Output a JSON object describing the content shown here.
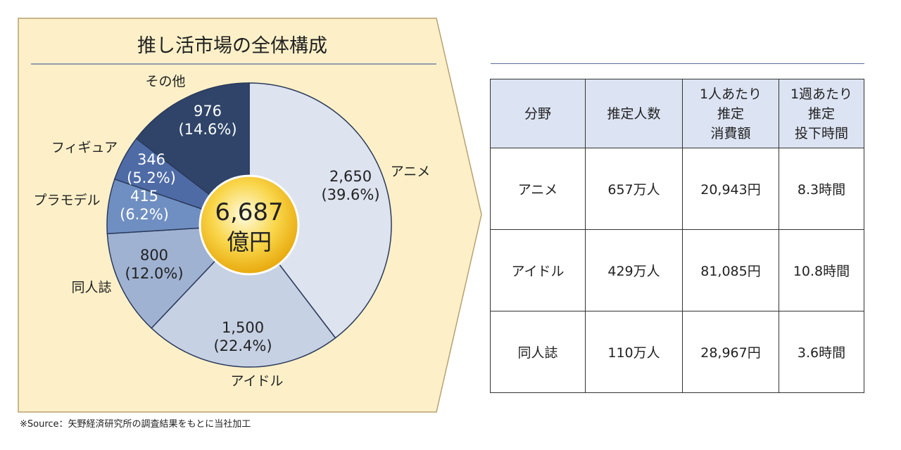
{
  "chart_data": {
    "type": "pie",
    "title": "推し活市場の全体構成",
    "center_label": {
      "value": "6,687",
      "unit": "億円"
    },
    "slices": [
      {
        "name": "アニメ",
        "value": 2650,
        "value_label": "2,650",
        "percent_label": "(39.6%)",
        "color": "#dde3ef"
      },
      {
        "name": "アイドル",
        "value": 1500,
        "value_label": "1,500",
        "percent_label": "(22.4%)",
        "color": "#c6d1e4"
      },
      {
        "name": "同人誌",
        "value": 800,
        "value_label": "800",
        "percent_label": "(12.0%)",
        "color": "#9fb2d2"
      },
      {
        "name": "プラモデル",
        "value": 415,
        "value_label": "415",
        "percent_label": "(6.2%)",
        "color": "#6f8fc2"
      },
      {
        "name": "フィギュア",
        "value": 346,
        "value_label": "346",
        "percent_label": "(5.2%)",
        "color": "#4e6ba6"
      },
      {
        "name": "その他",
        "value": 976,
        "value_label": "976",
        "percent_label": "(14.6%)",
        "color": "#2f4468"
      }
    ],
    "legend": "none"
  },
  "footnote": "※Source：矢野経済研究所の調査結果をもとに当社加工",
  "table": {
    "headers": [
      "分野",
      "推定人数",
      "1人あたり\n推定\n消費額",
      "1週あたり\n推定\n投下時間"
    ],
    "rows": [
      [
        "アニメ",
        "657万人",
        "20,943円",
        "8.3時間"
      ],
      [
        "アイドル",
        "429万人",
        "81,085円",
        "10.8時間"
      ],
      [
        "同人誌",
        "110万人",
        "28,967円",
        "3.6時間"
      ]
    ]
  },
  "colors": {
    "panel_fill": "#fdf0c8",
    "panel_stroke": "#b8a070",
    "title_rule": "#5a6e9a",
    "header_bg": "#dce3f2",
    "center_gold": "#f5c518"
  }
}
